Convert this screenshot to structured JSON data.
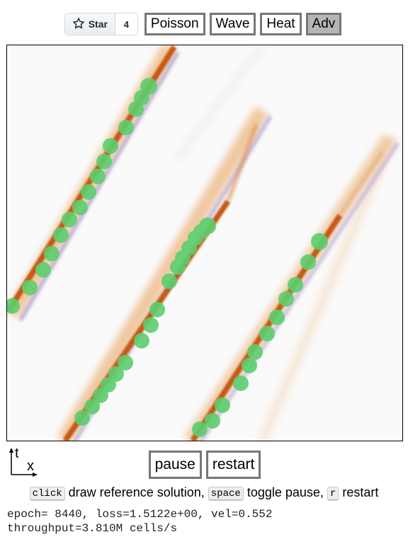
{
  "github": {
    "star_label": "Star",
    "star_count": "4",
    "star_icon": "star-outline-icon"
  },
  "modes": [
    {
      "label": "Poisson",
      "active": false
    },
    {
      "label": "Wave",
      "active": false
    },
    {
      "label": "Heat",
      "active": false
    },
    {
      "label": "Adv",
      "active": true
    }
  ],
  "canvas": {
    "colors": {
      "background": "#fafafa",
      "front_core": "#c8601a",
      "front_halo": "#e8a05a",
      "trailing_ripple": "#9b8ec8",
      "markers": "#5ccf6e"
    },
    "marker_icon": "green-dot-marker"
  },
  "axes": {
    "t_label": "t",
    "x_label": "x"
  },
  "controls": {
    "pause_label": "pause",
    "restart_label": "restart"
  },
  "help": {
    "click_key": "click",
    "click_text": "draw reference solution,",
    "space_key": "space",
    "space_text": "toggle pause,",
    "r_key": "r",
    "r_text": "restart"
  },
  "stats": {
    "line1": "epoch= 8440, loss=1.5122e+00, vel=0.552",
    "line2": "throughput=3.810M cells/s"
  }
}
